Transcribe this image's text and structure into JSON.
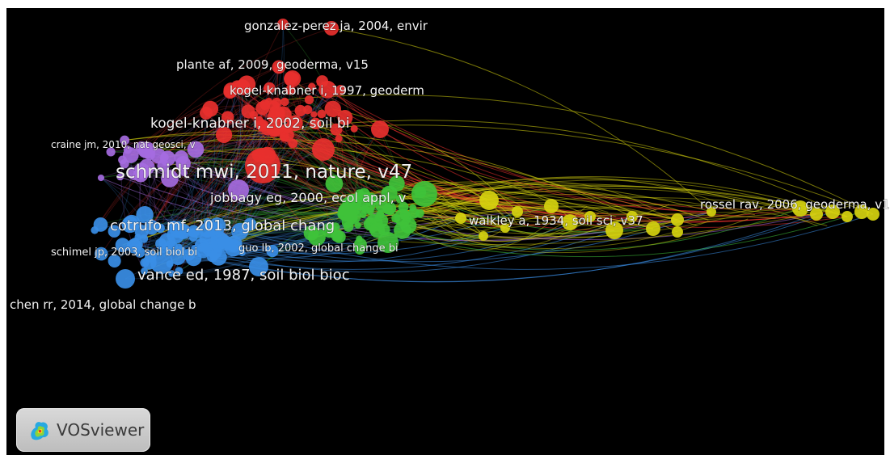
{
  "app": {
    "name": "VOSviewer"
  },
  "colors": {
    "background": "#000000",
    "red": "#e8302e",
    "purple": "#a56be0",
    "blue": "#3a8ee6",
    "green": "#3fc23a",
    "yellow": "#d6d20f"
  },
  "labels": [
    {
      "text": "gonzalez-perez ja, 2004, envir",
      "cluster": "red"
    },
    {
      "text": "plante af, 2009, geoderma, v15",
      "cluster": "red"
    },
    {
      "text": "kogel-knabner i, 1997, geoderm",
      "cluster": "red"
    },
    {
      "text": "kogel-knabner i, 2002, soil bi",
      "cluster": "red"
    },
    {
      "text": "craine jm, 2010, nat geosci, v",
      "cluster": "purple"
    },
    {
      "text": "schmidt mwi, 2011, nature, v47",
      "cluster": "red"
    },
    {
      "text": "jobbagy eg, 2000, ecol appl, v",
      "cluster": "green"
    },
    {
      "text": "cotrufo mf, 2013, global chang",
      "cluster": "blue"
    },
    {
      "text": "schimel jp, 2003, soil biol bi",
      "cluster": "blue"
    },
    {
      "text": "guo lb, 2002, global change bi",
      "cluster": "green"
    },
    {
      "text": "vance ed, 1987, soil biol bioc",
      "cluster": "blue"
    },
    {
      "text": "chen rr, 2014, global change b",
      "cluster": "blue"
    },
    {
      "text": "walkley a, 1934, soil sci, v37",
      "cluster": "yellow"
    },
    {
      "text": "rossel rav, 2006, geoderma, v1",
      "cluster": "yellow"
    }
  ]
}
